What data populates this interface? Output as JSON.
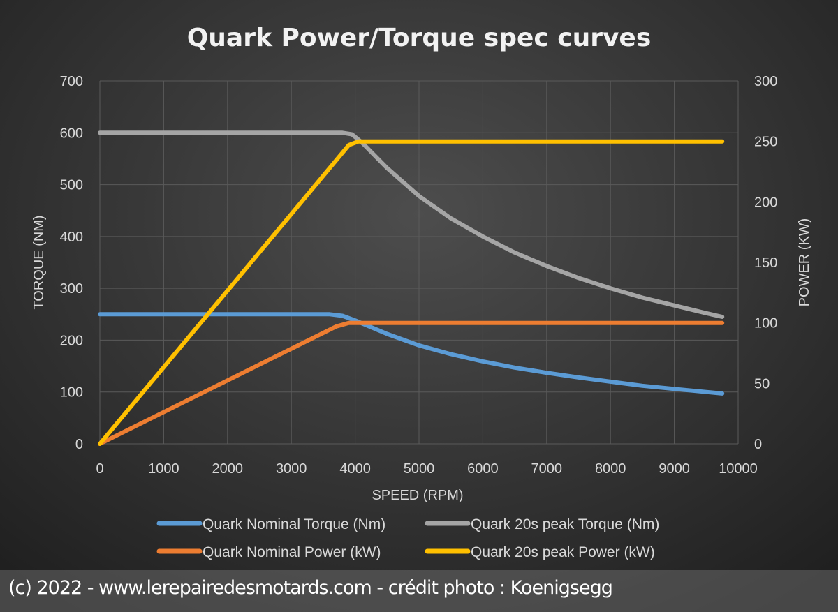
{
  "chart_data": {
    "type": "line",
    "title": "Quark Power/Torque spec curves",
    "xlabel": "SPEED (RPM)",
    "ylabel": "TORQUE (NM)",
    "y2label": "POWER (KW)",
    "xlim": [
      0,
      10000
    ],
    "ylim": [
      0,
      700
    ],
    "y2lim": [
      0,
      300
    ],
    "xticks": [
      0,
      1000,
      2000,
      3000,
      4000,
      5000,
      6000,
      7000,
      8000,
      9000,
      10000
    ],
    "yticks": [
      0,
      100,
      200,
      300,
      400,
      500,
      600,
      700
    ],
    "y2ticks": [
      0,
      50,
      100,
      150,
      200,
      250,
      300
    ],
    "grid": true,
    "legend_position": "bottom",
    "series": [
      {
        "name": "Quark Nominal Torque (Nm)",
        "axis": "left",
        "color": "#5b9bd5",
        "points": [
          [
            0,
            250
          ],
          [
            3600,
            250
          ],
          [
            3800,
            247
          ],
          [
            4000,
            238
          ],
          [
            4500,
            212
          ],
          [
            5000,
            190
          ],
          [
            5500,
            173
          ],
          [
            6000,
            159
          ],
          [
            6500,
            147
          ],
          [
            7000,
            137
          ],
          [
            7500,
            128
          ],
          [
            8000,
            120
          ],
          [
            8500,
            112
          ],
          [
            9000,
            106
          ],
          [
            9500,
            100
          ],
          [
            9750,
            97
          ]
        ]
      },
      {
        "name": "Quark 20s peak Torque (Nm)",
        "axis": "left",
        "color": "#a5a5a5",
        "points": [
          [
            0,
            600
          ],
          [
            3800,
            600
          ],
          [
            3950,
            597
          ],
          [
            4100,
            582
          ],
          [
            4500,
            532
          ],
          [
            5000,
            478
          ],
          [
            5500,
            435
          ],
          [
            6000,
            400
          ],
          [
            6500,
            369
          ],
          [
            7000,
            343
          ],
          [
            7500,
            320
          ],
          [
            8000,
            300
          ],
          [
            8500,
            282
          ],
          [
            9000,
            267
          ],
          [
            9500,
            252
          ],
          [
            9750,
            245
          ]
        ]
      },
      {
        "name": "Quark Nominal Power (kW)",
        "axis": "right",
        "color": "#ed7d31",
        "points": [
          [
            0,
            0
          ],
          [
            3700,
            97
          ],
          [
            3900,
            100
          ],
          [
            9750,
            100
          ]
        ]
      },
      {
        "name": "Quark 20s peak Power (kW)",
        "axis": "right",
        "color": "#ffc000",
        "points": [
          [
            0,
            0
          ],
          [
            3900,
            247
          ],
          [
            4050,
            250
          ],
          [
            9750,
            250
          ]
        ]
      }
    ]
  },
  "watermark": "(c) 2022 - www.lerepairedesmotards.com - crédit photo : Koenigsegg"
}
